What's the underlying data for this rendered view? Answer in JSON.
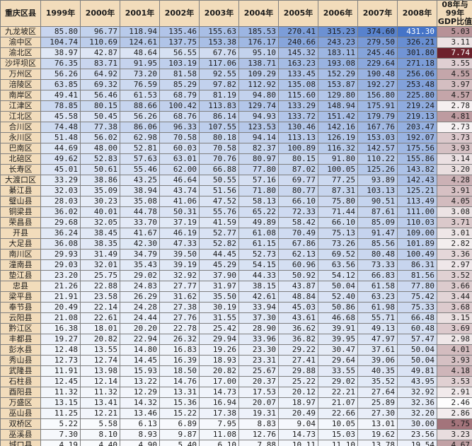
{
  "chart_data": {
    "type": "table",
    "columns": [
      "重庆区县",
      "1999年",
      "2000年",
      "2001年",
      "2002年",
      "2003年",
      "2004年",
      "2005年",
      "2006年",
      "2007年",
      "2008年",
      "08年与99年GDP比值"
    ],
    "header_last_lines": [
      "08年与99年",
      "GDP比值"
    ],
    "rows": [
      {
        "name": "九龙坡区",
        "values": [
          "85.80",
          "96.77",
          "118.94",
          "135.46",
          "155.63",
          "185.53",
          "270.41",
          "315.23",
          "374.60",
          "431.30"
        ],
        "ratio": "5.03"
      },
      {
        "name": "渝中区",
        "values": [
          "104.74",
          "110.69",
          "124.61",
          "137.75",
          "153.38",
          "176.17",
          "240.66",
          "243.23",
          "279.50",
          "326.21"
        ],
        "ratio": "3.11"
      },
      {
        "name": "渝北区",
        "values": [
          "38.97",
          "42.87",
          "48.64",
          "56.55",
          "67.76",
          "95.10",
          "145.32",
          "183.11",
          "245.46",
          "301.80"
        ],
        "ratio": "7.74"
      },
      {
        "name": "沙坪坝区",
        "values": [
          "76.35",
          "83.71",
          "91.95",
          "103.19",
          "117.06",
          "138.71",
          "163.23",
          "193.08",
          "229.64",
          "271.18"
        ],
        "ratio": "3.55"
      },
      {
        "name": "万州区",
        "values": [
          "56.26",
          "64.92",
          "73.20",
          "81.58",
          "92.55",
          "109.29",
          "133.45",
          "152.29",
          "190.48",
          "256.06"
        ],
        "ratio": "4.55"
      },
      {
        "name": "涪陵区",
        "values": [
          "63.85",
          "69.32",
          "76.59",
          "85.29",
          "97.82",
          "112.92",
          "135.08",
          "153.87",
          "192.27",
          "253.48"
        ],
        "ratio": "3.97"
      },
      {
        "name": "南岸区",
        "values": [
          "49.41",
          "56.46",
          "61.53",
          "68.79",
          "81.19",
          "94.80",
          "115.60",
          "129.80",
          "156.80",
          "225.80"
        ],
        "ratio": "4.57"
      },
      {
        "name": "江津区",
        "values": [
          "78.85",
          "80.15",
          "88.66",
          "100.42",
          "113.83",
          "129.74",
          "133.29",
          "148.94",
          "175.91",
          "219.24"
        ],
        "ratio": "2.78"
      },
      {
        "name": "江北区",
        "values": [
          "45.58",
          "50.45",
          "56.26",
          "68.76",
          "86.14",
          "94.93",
          "133.72",
          "151.42",
          "179.79",
          "219.13"
        ],
        "ratio": "4.81"
      },
      {
        "name": "合川区",
        "values": [
          "74.48",
          "77.38",
          "86.06",
          "96.33",
          "107.55",
          "123.53",
          "130.46",
          "142.16",
          "167.76",
          "203.47"
        ],
        "ratio": "2.73"
      },
      {
        "name": "永川区",
        "values": [
          "51.48",
          "56.02",
          "62.98",
          "70.58",
          "80.18",
          "94.14",
          "113.13",
          "126.19",
          "153.03",
          "192.07"
        ],
        "ratio": "3.73"
      },
      {
        "name": "巴南区",
        "values": [
          "44.69",
          "48.00",
          "52.81",
          "60.03",
          "70.58",
          "82.37",
          "100.89",
          "116.32",
          "142.57",
          "175.56"
        ],
        "ratio": "3.93"
      },
      {
        "name": "北碚区",
        "values": [
          "49.62",
          "52.83",
          "57.63",
          "63.01",
          "70.76",
          "80.97",
          "80.15",
          "91.80",
          "110.22",
          "155.86"
        ],
        "ratio": "3.14"
      },
      {
        "name": "长寿区",
        "values": [
          "45.01",
          "50.61",
          "55.46",
          "62.00",
          "66.88",
          "77.80",
          "87.02",
          "100.05",
          "125.26",
          "143.82"
        ],
        "ratio": "3.20"
      },
      {
        "name": "大渡口区",
        "values": [
          "33.29",
          "38.86",
          "43.25",
          "46.64",
          "50.55",
          "57.16",
          "69.77",
          "77.25",
          "93.89",
          "142.43"
        ],
        "ratio": "4.28"
      },
      {
        "name": "綦江县",
        "values": [
          "32.03",
          "35.09",
          "38.94",
          "43.74",
          "51.56",
          "71.80",
          "80.77",
          "87.31",
          "103.13",
          "125.21"
        ],
        "ratio": "3.91"
      },
      {
        "name": "璧山县",
        "values": [
          "28.03",
          "30.23",
          "35.08",
          "41.06",
          "47.52",
          "58.13",
          "66.10",
          "75.80",
          "90.51",
          "113.49"
        ],
        "ratio": "4.05"
      },
      {
        "name": "铜梁县",
        "values": [
          "36.02",
          "40.01",
          "44.78",
          "50.31",
          "55.76",
          "65.22",
          "72.33",
          "71.44",
          "87.61",
          "111.00"
        ],
        "ratio": "3.08"
      },
      {
        "name": "荣昌县",
        "values": [
          "29.68",
          "32.05",
          "33.70",
          "37.19",
          "41.59",
          "49.89",
          "58.42",
          "66.10",
          "85.09",
          "110.03"
        ],
        "ratio": "3.71"
      },
      {
        "name": "开县",
        "values": [
          "36.24",
          "38.45",
          "41.67",
          "46.19",
          "52.77",
          "61.08",
          "70.49",
          "75.13",
          "91.47",
          "109.00"
        ],
        "ratio": "3.01"
      },
      {
        "name": "大足县",
        "values": [
          "36.08",
          "38.35",
          "42.30",
          "47.33",
          "52.82",
          "61.15",
          "67.86",
          "73.26",
          "85.56",
          "101.89"
        ],
        "ratio": "2.82"
      },
      {
        "name": "南川区",
        "values": [
          "29.93",
          "31.49",
          "34.79",
          "39.50",
          "44.45",
          "52.73",
          "62.13",
          "69.52",
          "80.48",
          "100.49"
        ],
        "ratio": "3.36"
      },
      {
        "name": "潼南县",
        "values": [
          "29.03",
          "32.01",
          "35.43",
          "39.19",
          "45.29",
          "54.15",
          "60.96",
          "63.56",
          "73.33",
          "86.31"
        ],
        "ratio": "2.97"
      },
      {
        "name": "垫江县",
        "values": [
          "23.20",
          "25.75",
          "29.02",
          "32.92",
          "37.90",
          "44.33",
          "50.92",
          "54.12",
          "66.83",
          "81.56"
        ],
        "ratio": "3.52"
      },
      {
        "name": "忠县",
        "values": [
          "21.26",
          "22.88",
          "24.83",
          "27.77",
          "31.97",
          "38.15",
          "43.87",
          "50.04",
          "61.58",
          "77.80"
        ],
        "ratio": "3.66"
      },
      {
        "name": "梁平县",
        "values": [
          "21.91",
          "23.58",
          "26.29",
          "31.62",
          "35.50",
          "42.61",
          "48.84",
          "52.40",
          "63.23",
          "75.42"
        ],
        "ratio": "3.44"
      },
      {
        "name": "奉节县",
        "values": [
          "20.49",
          "22.14",
          "24.28",
          "27.38",
          "30.19",
          "33.94",
          "45.03",
          "50.86",
          "61.98",
          "75.33"
        ],
        "ratio": "3.68"
      },
      {
        "name": "云阳县",
        "values": [
          "21.08",
          "22.61",
          "24.44",
          "27.76",
          "31.55",
          "37.30",
          "43.61",
          "46.68",
          "55.71",
          "66.48"
        ],
        "ratio": "3.15"
      },
      {
        "name": "黔江区",
        "values": [
          "16.38",
          "18.01",
          "20.20",
          "22.78",
          "25.42",
          "28.90",
          "36.62",
          "39.91",
          "49.13",
          "60.48"
        ],
        "ratio": "3.69"
      },
      {
        "name": "丰都县",
        "values": [
          "19.27",
          "20.82",
          "22.94",
          "26.32",
          "29.94",
          "33.96",
          "36.82",
          "39.95",
          "47.97",
          "57.47"
        ],
        "ratio": "2.98"
      },
      {
        "name": "彭水县",
        "values": [
          "12.48",
          "13.55",
          "14.80",
          "16.83",
          "19.26",
          "23.30",
          "29.22",
          "30.47",
          "37.61",
          "50.04"
        ],
        "ratio": "4.01"
      },
      {
        "name": "秀山县",
        "values": [
          "12.73",
          "12.74",
          "14.45",
          "16.39",
          "18.93",
          "23.31",
          "27.41",
          "29.64",
          "39.06",
          "50.04"
        ],
        "ratio": "3.93"
      },
      {
        "name": "武隆县",
        "values": [
          "11.91",
          "13.98",
          "15.93",
          "18.50",
          "20.82",
          "25.67",
          "29.88",
          "33.55",
          "40.35",
          "49.81"
        ],
        "ratio": "4.18"
      },
      {
        "name": "石柱县",
        "values": [
          "12.45",
          "12.14",
          "13.22",
          "14.76",
          "17.00",
          "20.37",
          "25.22",
          "29.02",
          "35.52",
          "43.95"
        ],
        "ratio": "3.53"
      },
      {
        "name": "酉阳县",
        "values": [
          "11.32",
          "11.32",
          "12.29",
          "13.31",
          "14.73",
          "17.53",
          "20.12",
          "22.21",
          "27.64",
          "32.92"
        ],
        "ratio": "2.91"
      },
      {
        "name": "万盛区",
        "values": [
          "13.15",
          "13.41",
          "14.32",
          "15.36",
          "16.94",
          "20.07",
          "18.97",
          "21.07",
          "25.89",
          "32.36"
        ],
        "ratio": "2.46"
      },
      {
        "name": "巫山县",
        "values": [
          "11.25",
          "12.21",
          "13.46",
          "15.22",
          "17.38",
          "19.31",
          "20.49",
          "22.66",
          "27.30",
          "32.20"
        ],
        "ratio": "2.86"
      },
      {
        "name": "双桥区",
        "values": [
          "5.22",
          "5.58",
          "6.13",
          "6.89",
          "7.95",
          "8.83",
          "9.04",
          "10.05",
          "13.01",
          "30.00"
        ],
        "ratio": "5.75"
      },
      {
        "name": "巫溪县",
        "values": [
          "7.30",
          "8.10",
          "8.93",
          "9.87",
          "11.08",
          "12.76",
          "14.73",
          "15.03",
          "19.62",
          "23.56"
        ],
        "ratio": "3.23"
      },
      {
        "name": "城口县",
        "values": [
          "4.19",
          "4.40",
          "4.90",
          "5.40",
          "6.10",
          "7.88",
          "10.11",
          "11.10",
          "13.78",
          "19.54"
        ],
        "ratio": "4.67"
      }
    ],
    "value_scale": [
      0,
      450
    ],
    "ratio_scale": [
      2.4,
      7.8
    ],
    "colors": {
      "header_bg": "#f2dcbb",
      "value_low": "#ffffff",
      "value_high": "#3f6fc6",
      "ratio_low": "#ffffff",
      "ratio_high": "#6b1f2a",
      "grid": "#7f7f7f"
    }
  }
}
